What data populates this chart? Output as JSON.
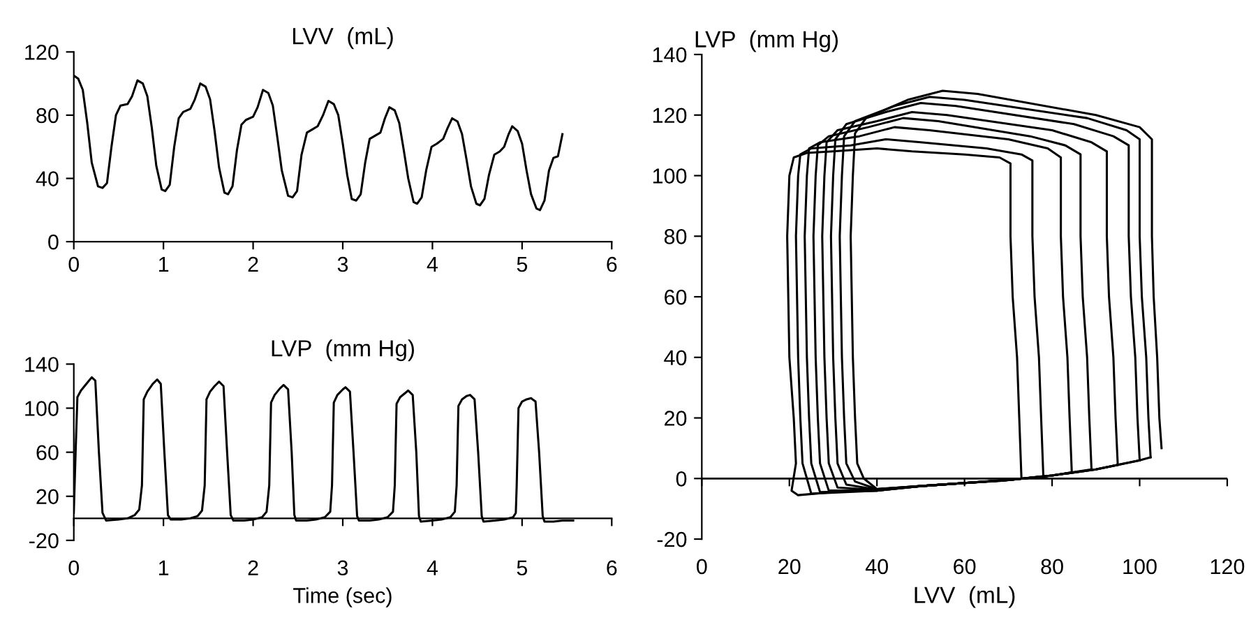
{
  "chart_data": [
    {
      "type": "line",
      "title": "LVV  (mL)",
      "xlim": [
        0,
        6
      ],
      "xticks": [
        0,
        1,
        2,
        3,
        4,
        5,
        6
      ],
      "ylim": [
        0,
        120
      ],
      "yticks": [
        0,
        40,
        80,
        120
      ],
      "grid": false,
      "marker": "none",
      "line_style": "solid",
      "series": [
        {
          "color": "#000000",
          "x": [
            0,
            0.05,
            0.1,
            0.15,
            0.2,
            0.27,
            0.32,
            0.37,
            0.42,
            0.47,
            0.52,
            0.6,
            0.65,
            0.71,
            0.77,
            0.82,
            0.87,
            0.92,
            0.98,
            1.02,
            1.07,
            1.12,
            1.17,
            1.22,
            1.3,
            1.35,
            1.41,
            1.47,
            1.52,
            1.57,
            1.62,
            1.68,
            1.72,
            1.77,
            1.82,
            1.87,
            1.92,
            2.0,
            2.05,
            2.11,
            2.17,
            2.22,
            2.27,
            2.32,
            2.39,
            2.44,
            2.49,
            2.54,
            2.6,
            2.66,
            2.72,
            2.78,
            2.84,
            2.9,
            2.95,
            3.0,
            3.05,
            3.1,
            3.15,
            3.2,
            3.25,
            3.3,
            3.36,
            3.42,
            3.47,
            3.52,
            3.58,
            3.63,
            3.68,
            3.73,
            3.79,
            3.83,
            3.88,
            3.93,
            3.99,
            4.05,
            4.12,
            4.17,
            4.22,
            4.28,
            4.33,
            4.38,
            4.43,
            4.49,
            4.53,
            4.58,
            4.63,
            4.69,
            4.75,
            4.8,
            4.85,
            4.89,
            4.95,
            5.0,
            5.05,
            5.1,
            5.16,
            5.2,
            5.25,
            5.3,
            5.35,
            5.4,
            5.45
          ],
          "values": [
            105,
            103,
            96,
            75,
            50,
            35,
            34,
            37,
            60,
            80,
            86,
            87,
            92,
            102,
            100,
            92,
            72,
            48,
            33,
            32,
            36,
            60,
            78,
            82,
            84,
            90,
            100,
            98,
            90,
            70,
            47,
            31,
            30,
            35,
            58,
            74,
            77,
            79,
            85,
            96,
            94,
            86,
            66,
            45,
            29,
            28,
            32,
            55,
            69,
            71,
            73,
            80,
            89,
            87,
            80,
            62,
            42,
            27,
            26,
            30,
            50,
            65,
            67,
            69,
            78,
            85,
            83,
            75,
            58,
            40,
            25,
            24,
            28,
            45,
            60,
            62,
            65,
            72,
            78,
            76,
            68,
            52,
            35,
            24,
            23,
            27,
            42,
            55,
            57,
            60,
            68,
            73,
            70,
            62,
            45,
            30,
            21,
            20,
            26,
            45,
            53,
            54,
            68
          ]
        }
      ]
    },
    {
      "type": "line",
      "title": "LVP  (mm Hg)",
      "xlabel": "Time (sec)",
      "xlim": [
        0,
        6
      ],
      "xticks": [
        0,
        1,
        2,
        3,
        4,
        5,
        6
      ],
      "ylim": [
        -20,
        140
      ],
      "yticks": [
        -20,
        20,
        60,
        100,
        140
      ],
      "grid": false,
      "marker": "none",
      "line_style": "solid",
      "series": [
        {
          "color": "#000000",
          "x": [
            0,
            0.02,
            0.04,
            0.08,
            0.14,
            0.2,
            0.24,
            0.28,
            0.32,
            0.36,
            0.5,
            0.6,
            0.68,
            0.73,
            0.76,
            0.78,
            0.82,
            0.88,
            0.93,
            0.97,
            1.01,
            1.05,
            1.08,
            1.2,
            1.3,
            1.38,
            1.43,
            1.46,
            1.48,
            1.52,
            1.57,
            1.62,
            1.67,
            1.71,
            1.75,
            1.78,
            1.9,
            2.0,
            2.1,
            2.15,
            2.18,
            2.2,
            2.24,
            2.3,
            2.34,
            2.39,
            2.43,
            2.46,
            2.48,
            2.6,
            2.7,
            2.8,
            2.86,
            2.88,
            2.9,
            2.94,
            3.0,
            3.03,
            3.08,
            3.12,
            3.16,
            3.18,
            3.3,
            3.4,
            3.5,
            3.56,
            3.58,
            3.6,
            3.64,
            3.7,
            3.73,
            3.78,
            3.82,
            3.85,
            3.87,
            4.0,
            4.1,
            4.2,
            4.25,
            4.27,
            4.29,
            4.33,
            4.38,
            4.42,
            4.47,
            4.51,
            4.55,
            4.57,
            4.7,
            4.8,
            4.9,
            4.93,
            4.94,
            4.96,
            5.0,
            5.05,
            5.1,
            5.15,
            5.19,
            5.23,
            5.25,
            5.35,
            5.45,
            5.57
          ],
          "values": [
            5,
            60,
            110,
            116,
            122,
            128,
            125,
            60,
            5,
            -2,
            -1,
            0,
            3,
            8,
            30,
            108,
            115,
            122,
            126,
            122,
            60,
            3,
            -1,
            -1,
            0,
            2,
            7,
            30,
            108,
            115,
            120,
            124,
            120,
            60,
            3,
            -2,
            -2,
            -1,
            1,
            6,
            30,
            105,
            112,
            118,
            121,
            117,
            60,
            3,
            -2,
            -2,
            -1,
            1,
            6,
            30,
            105,
            112,
            117,
            119,
            115,
            60,
            2,
            -2,
            -2,
            -1,
            1,
            6,
            30,
            104,
            110,
            114,
            116,
            112,
            60,
            2,
            -3,
            -2,
            -1,
            1,
            6,
            30,
            102,
            108,
            111,
            112,
            108,
            60,
            2,
            -3,
            -2,
            -1,
            1,
            5,
            30,
            100,
            106,
            108,
            109,
            106,
            60,
            2,
            -3,
            -3,
            -2,
            -2
          ]
        }
      ]
    },
    {
      "type": "line",
      "xlabel": "LVV  (mL)",
      "ylabel": "LVP  (mm Hg)",
      "xlim": [
        0,
        120
      ],
      "xticks": [
        0,
        20,
        40,
        60,
        80,
        100,
        120
      ],
      "ylim": [
        -20,
        140
      ],
      "yticks": [
        -20,
        0,
        20,
        40,
        60,
        80,
        100,
        120,
        140
      ],
      "ref_lines": [
        {
          "axis": "y",
          "value": 0
        }
      ],
      "grid": false,
      "marker": "none",
      "line_style": "solid",
      "series": [
        {
          "color": "#000000",
          "x": [
            105,
            104.5,
            104,
            103.2,
            102.8,
            102.8,
            102.8,
            100,
            90,
            63,
            55,
            47,
            37.5,
            35,
            34.5,
            34,
            34.5,
            35,
            35.5,
            37,
            40,
            50,
            60,
            70,
            80,
            90,
            100,
            102.5
          ],
          "values": [
            10,
            20,
            40,
            60,
            80,
            100,
            112,
            116,
            120,
            127,
            128,
            125,
            119,
            114,
            100,
            80,
            40,
            20,
            5,
            0,
            -3.5,
            -2.5,
            -1.5,
            -0.5,
            1,
            3,
            6,
            7
          ]
        },
        {
          "color": "#000000",
          "x": [
            102.5,
            102,
            101.5,
            100.5,
            100,
            100,
            100,
            97,
            88,
            60,
            52,
            44,
            35,
            32.5,
            32,
            31.5,
            32,
            32.5,
            33,
            35,
            40,
            50,
            60,
            70,
            80,
            90,
            100
          ],
          "values": [
            7,
            20,
            40,
            60,
            80,
            100,
            112,
            115,
            119,
            125,
            126,
            123,
            118,
            113,
            100,
            80,
            40,
            20,
            5,
            -1,
            -3.5,
            -2.5,
            -1.5,
            -0.5,
            1,
            3,
            6
          ]
        },
        {
          "color": "#000000",
          "x": [
            100,
            99.5,
            99,
            98,
            97.5,
            97.5,
            97.5,
            94,
            85,
            58,
            50,
            42,
            33,
            30.5,
            30,
            29.5,
            30,
            30.5,
            31,
            33,
            40,
            50,
            60,
            70,
            80,
            90,
            95
          ],
          "values": [
            6,
            20,
            40,
            60,
            80,
            100,
            110,
            113,
            117,
            123,
            124,
            121,
            117,
            112,
            100,
            80,
            40,
            20,
            5,
            -2,
            -3.7,
            -2.5,
            -1.5,
            -0.5,
            1,
            3,
            4.5
          ]
        },
        {
          "color": "#000000",
          "x": [
            95,
            94.5,
            94,
            93,
            92.5,
            92.5,
            92.5,
            89,
            80,
            56,
            48,
            40,
            31,
            28.5,
            28,
            27.5,
            28,
            28.5,
            29,
            31,
            40,
            50,
            60,
            70,
            80,
            89
          ],
          "values": [
            4.5,
            20,
            40,
            60,
            80,
            100,
            108,
            111,
            115,
            120,
            121,
            118,
            115,
            111,
            100,
            80,
            40,
            20,
            5,
            -3,
            -3.8,
            -2.5,
            -1.5,
            -0.5,
            1,
            3
          ]
        },
        {
          "color": "#000000",
          "x": [
            89,
            88.5,
            88,
            87,
            86.5,
            86.5,
            86.5,
            83,
            75,
            54,
            46,
            38,
            29,
            26.5,
            26,
            25.5,
            26,
            26.5,
            27,
            29,
            40,
            50,
            60,
            70,
            80,
            84.5
          ],
          "values": [
            3,
            20,
            40,
            60,
            80,
            100,
            107,
            110,
            113,
            118,
            119,
            116,
            113,
            110,
            100,
            80,
            40,
            20,
            5,
            -4,
            -4,
            -2.5,
            -1.5,
            -0.5,
            1,
            2
          ]
        },
        {
          "color": "#000000",
          "x": [
            84.5,
            84,
            83.5,
            82.5,
            82,
            82,
            82,
            79,
            70,
            52,
            44,
            36,
            27,
            24.5,
            24,
            23.5,
            24,
            24.5,
            25,
            27,
            40,
            50,
            60,
            70,
            78
          ],
          "values": [
            2,
            20,
            40,
            60,
            80,
            100,
            106,
            109,
            112,
            115,
            116,
            113,
            111,
            109,
            100,
            80,
            40,
            20,
            5,
            -4.5,
            -4,
            -2.5,
            -1.5,
            -0.5,
            0.8
          ]
        },
        {
          "color": "#000000",
          "x": [
            78,
            77.5,
            77,
            76,
            75.5,
            75.5,
            75.5,
            73,
            65,
            50,
            42,
            34,
            25,
            22.5,
            22,
            21.5,
            22,
            22.5,
            23,
            25,
            40,
            50,
            60,
            73
          ],
          "values": [
            0.8,
            20,
            40,
            60,
            80,
            100,
            105,
            107,
            109,
            111,
            112,
            110,
            109,
            107,
            100,
            80,
            40,
            20,
            5,
            -5,
            -4,
            -2.5,
            -1.5,
            0
          ]
        },
        {
          "color": "#000000",
          "x": [
            73,
            72.5,
            72,
            71,
            70.5,
            70.5,
            70.5,
            68,
            60,
            48,
            40,
            30,
            24,
            21,
            20,
            19.5,
            20,
            21,
            21.5,
            20.5,
            22,
            30,
            40,
            50,
            60,
            68
          ],
          "values": [
            0,
            20,
            40,
            60,
            80,
            100,
            104,
            106,
            107,
            108,
            109,
            108,
            107.5,
            106,
            100,
            80,
            40,
            20,
            5,
            -4,
            -5.5,
            -4.5,
            -3.5,
            -2.5,
            -1.5,
            -0.8
          ]
        }
      ]
    }
  ]
}
